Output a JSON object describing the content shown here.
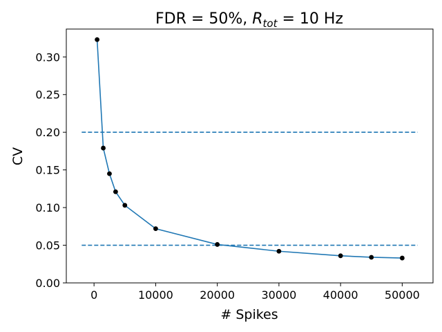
{
  "chart_data": {
    "type": "line",
    "title_prefix": "FDR = 50%, ",
    "title_var": "R",
    "title_sub": "tot",
    "title_suffix": " = 10 Hz",
    "xlabel": "# Spikes",
    "ylabel": "CV",
    "xlim": [
      -4500,
      55000
    ],
    "ylim": [
      0.0,
      0.337
    ],
    "xticks": [
      0,
      10000,
      20000,
      30000,
      40000,
      50000
    ],
    "yticks": [
      0.0,
      0.05,
      0.1,
      0.15,
      0.2,
      0.25,
      0.3
    ],
    "xtick_labels": [
      "0",
      "10000",
      "20000",
      "30000",
      "40000",
      "50000"
    ],
    "ytick_labels": [
      "0.00",
      "0.05",
      "0.10",
      "0.15",
      "0.20",
      "0.25",
      "0.30"
    ],
    "grid": false,
    "series": [
      {
        "x": [
          500,
          1500,
          2500,
          3500,
          5000,
          10000,
          20000,
          30000,
          40000,
          45000,
          50000
        ],
        "y": [
          0.323,
          0.179,
          0.145,
          0.121,
          0.103,
          0.072,
          0.051,
          0.042,
          0.036,
          0.034,
          0.033
        ],
        "line_color": "#1f77b4",
        "marker_color": "#000000"
      }
    ],
    "reference_lines": [
      {
        "y": 0.2,
        "x_start": -2000,
        "x_end": 52500,
        "style": "dashed",
        "color": "#1f77b4"
      },
      {
        "y": 0.05,
        "x_start": -2000,
        "x_end": 52500,
        "style": "dashed",
        "color": "#1f77b4"
      }
    ]
  }
}
